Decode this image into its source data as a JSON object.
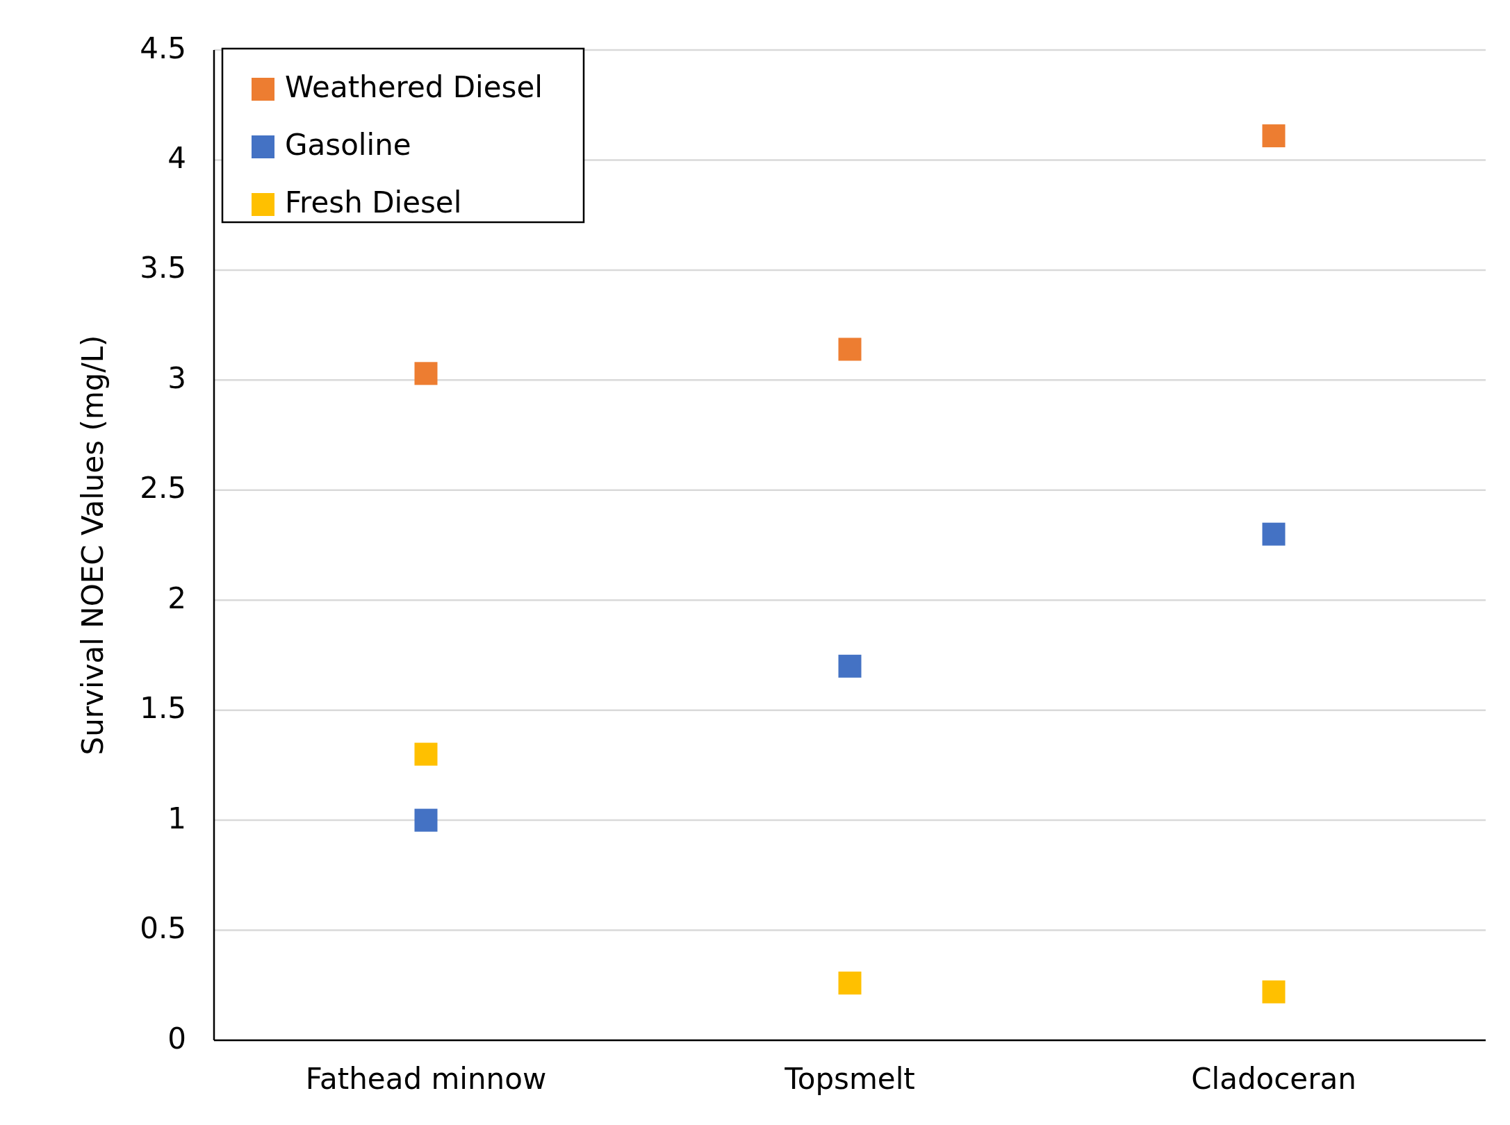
{
  "chart_data": {
    "type": "scatter",
    "ylabel": "Survival NOEC Values (mg/L)",
    "categories": [
      "Fathead minnow",
      "Topsmelt",
      "Cladoceran"
    ],
    "series": [
      {
        "name": "Weathered Diesel",
        "color": "#ed7d31",
        "values": [
          3.03,
          3.14,
          4.11
        ]
      },
      {
        "name": "Gasoline",
        "color": "#4472c4",
        "values": [
          1.0,
          1.7,
          2.3
        ]
      },
      {
        "name": "Fresh Diesel",
        "color": "#ffc000",
        "values": [
          1.3,
          0.26,
          0.22
        ]
      }
    ],
    "ylim": [
      0,
      4.5
    ],
    "yticks": [
      0,
      0.5,
      1,
      1.5,
      2,
      2.5,
      3,
      3.5,
      4,
      4.5
    ],
    "grid": "y",
    "legend": "top left",
    "marker": "square"
  }
}
